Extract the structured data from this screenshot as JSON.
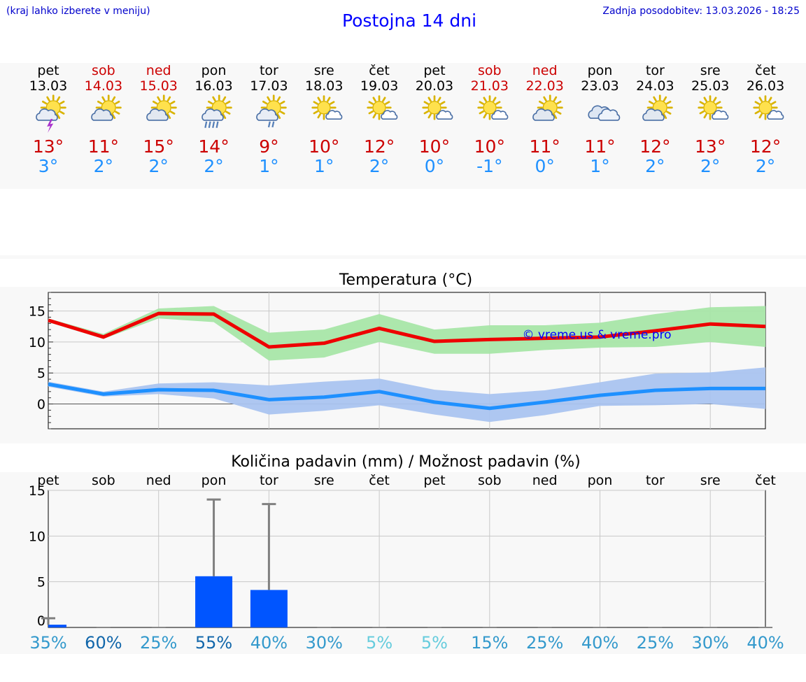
{
  "header": {
    "hint": "(kraj lahko izberete v meniju)",
    "title": "Postojna 14 dni",
    "updated": "Zadnja posodobitev: 13.03.2026 - 18:25"
  },
  "days": [
    {
      "name": "pet",
      "date": "13.03",
      "weekend": false,
      "icon": "sun-cloud-thunder-icon",
      "max": "13°",
      "min": "3°"
    },
    {
      "name": "sob",
      "date": "14.03",
      "weekend": true,
      "icon": "sun-cloud-icon",
      "max": "11°",
      "min": "2°"
    },
    {
      "name": "ned",
      "date": "15.03",
      "weekend": true,
      "icon": "sun-cloud-icon",
      "max": "15°",
      "min": "2°"
    },
    {
      "name": "pon",
      "date": "16.03",
      "weekend": false,
      "icon": "sun-cloud-rain-icon",
      "max": "14°",
      "min": "2°"
    },
    {
      "name": "tor",
      "date": "17.03",
      "weekend": false,
      "icon": "sun-cloud-light-rain-icon",
      "max": "9°",
      "min": "1°"
    },
    {
      "name": "sre",
      "date": "18.03",
      "weekend": false,
      "icon": "sun-small-cloud-icon",
      "max": "10°",
      "min": "1°"
    },
    {
      "name": "čet",
      "date": "19.03",
      "weekend": false,
      "icon": "sun-small-cloud-icon",
      "max": "12°",
      "min": "2°"
    },
    {
      "name": "pet",
      "date": "20.03",
      "weekend": false,
      "icon": "sun-small-cloud-icon",
      "max": "10°",
      "min": "0°"
    },
    {
      "name": "sob",
      "date": "21.03",
      "weekend": true,
      "icon": "sun-small-cloud-icon",
      "max": "10°",
      "min": "-1°"
    },
    {
      "name": "ned",
      "date": "22.03",
      "weekend": true,
      "icon": "sun-cloud-icon",
      "max": "11°",
      "min": "0°"
    },
    {
      "name": "pon",
      "date": "23.03",
      "weekend": false,
      "icon": "clouds-icon",
      "max": "11°",
      "min": "1°"
    },
    {
      "name": "tor",
      "date": "24.03",
      "weekend": false,
      "icon": "sun-cloud-icon",
      "max": "12°",
      "min": "2°"
    },
    {
      "name": "sre",
      "date": "25.03",
      "weekend": false,
      "icon": "sun-small-cloud-icon",
      "max": "13°",
      "min": "2°"
    },
    {
      "name": "čet",
      "date": "26.03",
      "weekend": false,
      "icon": "sun-small-cloud-icon",
      "max": "12°",
      "min": "2°"
    }
  ],
  "colors": {
    "max": "#ee0000",
    "min": "#1e90ff",
    "maxBand": "#a8e6a8",
    "minBand": "#aac4f0",
    "bar": "#0055ff",
    "err": "#808080"
  },
  "chart_data": [
    {
      "type": "line",
      "title": "Temperatura (°C)",
      "watermark": "© vreme.us & vreme.pro",
      "x": [
        0,
        1,
        2,
        3,
        4,
        5,
        6,
        7,
        8,
        9,
        10,
        11,
        12,
        13
      ],
      "ylim": [
        -4,
        18
      ],
      "yticks": [
        0,
        5,
        10,
        15
      ],
      "series": [
        {
          "name": "max",
          "values": [
            13.5,
            10.8,
            14.6,
            14.5,
            9.2,
            9.8,
            12.2,
            10.1,
            10.4,
            10.6,
            10.8,
            11.8,
            12.9,
            12.5
          ],
          "lo": [
            13.2,
            10.5,
            13.8,
            13.2,
            7.0,
            7.5,
            10.0,
            8.1,
            8.1,
            8.7,
            9.1,
            9.2,
            10.0,
            9.2
          ],
          "hi": [
            13.8,
            11.3,
            15.4,
            15.8,
            11.5,
            12.0,
            14.5,
            12.0,
            12.7,
            12.7,
            13.1,
            14.5,
            15.6,
            15.8
          ]
        },
        {
          "name": "min",
          "values": [
            3.2,
            1.6,
            2.3,
            2.2,
            0.7,
            1.1,
            2.0,
            0.3,
            -0.7,
            0.3,
            1.4,
            2.2,
            2.5,
            2.5
          ],
          "lo": [
            2.8,
            1.2,
            1.6,
            0.9,
            -1.7,
            -1.1,
            -0.2,
            -1.7,
            -2.9,
            -1.8,
            -0.3,
            -0.2,
            0.0,
            -0.8
          ],
          "hi": [
            3.6,
            2.0,
            3.3,
            3.5,
            3.0,
            3.6,
            4.1,
            2.3,
            1.6,
            2.2,
            3.5,
            4.9,
            5.1,
            5.9
          ]
        }
      ]
    },
    {
      "type": "bar",
      "title": "Količina padavin (mm) / Možnost padavin (%)",
      "categories": [
        "pet",
        "sob",
        "ned",
        "pon",
        "tor",
        "sre",
        "čet",
        "pet",
        "sob",
        "ned",
        "pon",
        "tor",
        "sre",
        "čet"
      ],
      "ylim": [
        0,
        15
      ],
      "yticks": [
        0,
        5,
        10,
        15
      ],
      "values": [
        0.3,
        0,
        0,
        5.6,
        4.1,
        0,
        0,
        0,
        0,
        0,
        0,
        0,
        0,
        0
      ],
      "errLow": [
        0,
        0,
        0,
        0,
        0,
        0,
        0,
        0,
        0,
        0,
        0,
        0,
        0,
        0
      ],
      "errHigh": [
        1.0,
        0,
        0,
        14.0,
        13.5,
        0,
        0,
        0,
        0,
        0,
        0,
        0,
        0,
        0
      ],
      "probability": [
        "35%",
        "60%",
        "25%",
        "55%",
        "40%",
        "30%",
        "5%",
        "5%",
        "15%",
        "25%",
        "40%",
        "25%",
        "30%",
        "40%"
      ],
      "probColors": [
        "#3399cc",
        "#1166aa",
        "#3399cc",
        "#1166aa",
        "#3399cc",
        "#3399cc",
        "#66ccdd",
        "#66ccdd",
        "#3399cc",
        "#3399cc",
        "#3399cc",
        "#3399cc",
        "#3399cc",
        "#3399cc"
      ]
    }
  ]
}
